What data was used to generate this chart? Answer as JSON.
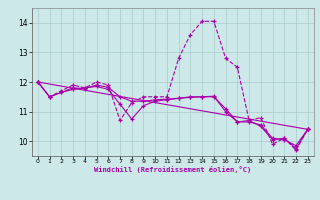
{
  "xlabel": "Windchill (Refroidissement éolien,°C)",
  "bg_color": "#cce8e8",
  "grid_color": "#aacccc",
  "line_color": "#aa00aa",
  "xlim": [
    -0.5,
    23.5
  ],
  "ylim": [
    9.5,
    14.5
  ],
  "yticks": [
    10,
    11,
    12,
    13,
    14
  ],
  "xticks": [
    0,
    1,
    2,
    3,
    4,
    5,
    6,
    7,
    8,
    9,
    10,
    11,
    12,
    13,
    14,
    15,
    16,
    17,
    18,
    19,
    20,
    21,
    22,
    23
  ],
  "series1_dashed": {
    "x": [
      0,
      1,
      2,
      3,
      4,
      5,
      6,
      7,
      8,
      9,
      10,
      11,
      12,
      13,
      14,
      15,
      16,
      17,
      18,
      19,
      20,
      21,
      22,
      23
    ],
    "y": [
      12.0,
      11.5,
      11.7,
      11.9,
      11.8,
      12.0,
      11.9,
      10.7,
      11.3,
      11.5,
      11.5,
      11.5,
      12.8,
      13.6,
      14.05,
      14.05,
      12.8,
      12.5,
      10.7,
      10.8,
      9.9,
      10.1,
      9.7,
      10.4
    ]
  },
  "series2_straight": {
    "x": [
      0,
      23
    ],
    "y": [
      12.0,
      10.4
    ]
  },
  "series3": {
    "x": [
      0,
      1,
      2,
      3,
      4,
      5,
      6,
      7,
      8,
      9,
      10,
      11,
      12,
      13,
      14,
      15,
      16,
      17,
      18,
      19,
      20,
      21,
      22,
      23
    ],
    "y": [
      12.0,
      11.5,
      11.65,
      11.75,
      11.8,
      11.85,
      11.75,
      11.25,
      10.75,
      11.2,
      11.35,
      11.4,
      11.45,
      11.5,
      11.5,
      11.5,
      11.1,
      10.65,
      10.65,
      10.55,
      10.1,
      10.05,
      9.85,
      10.4
    ]
  },
  "series4": {
    "x": [
      0,
      1,
      2,
      3,
      4,
      5,
      6,
      7,
      8,
      9,
      10,
      11,
      12,
      13,
      14,
      15,
      16,
      17,
      18,
      19,
      20,
      21,
      22,
      23
    ],
    "y": [
      12.0,
      11.5,
      11.65,
      11.8,
      11.78,
      11.9,
      11.82,
      11.5,
      11.35,
      11.35,
      11.4,
      11.42,
      11.45,
      11.48,
      11.5,
      11.52,
      11.0,
      10.65,
      10.7,
      10.5,
      10.05,
      10.1,
      9.75,
      10.4
    ]
  }
}
